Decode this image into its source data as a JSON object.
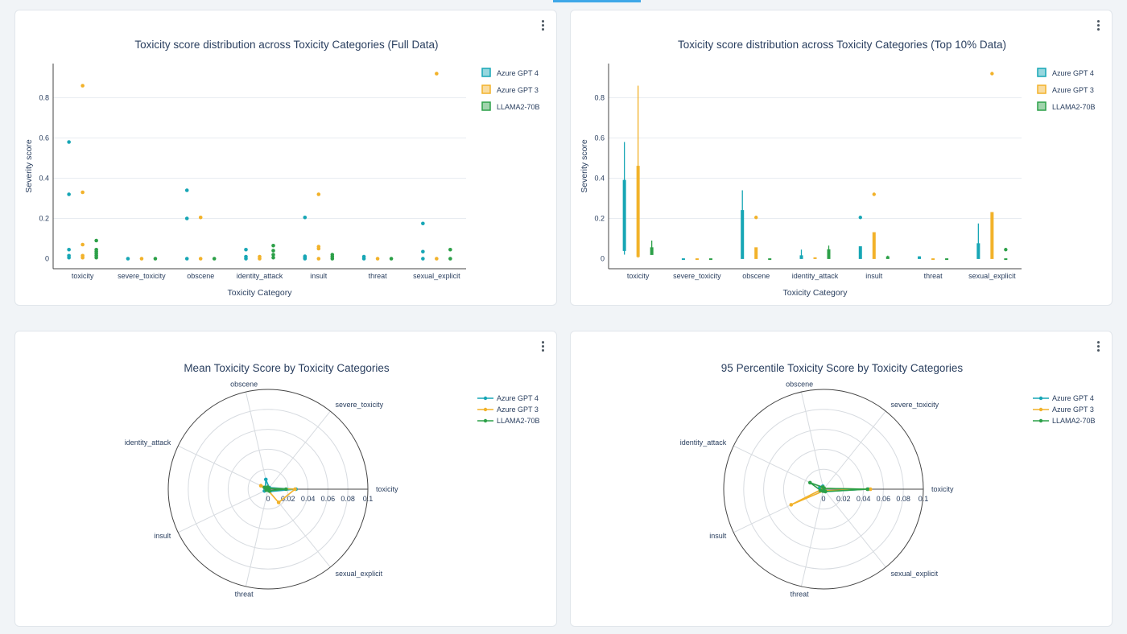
{
  "colors": {
    "azure_gpt4": "#17a6b5",
    "azure_gpt3": "#f2b22a",
    "llama2": "#2ca048"
  },
  "legend": [
    {
      "name": "Azure GPT 4",
      "color": "#17a6b5"
    },
    {
      "name": "Azure GPT 3",
      "color": "#f2b22a"
    },
    {
      "name": "LLAMA2-70B",
      "color": "#2ca048"
    }
  ],
  "chart_data": [
    {
      "type": "scatter",
      "title": "Toxicity score distribution across Toxicity Categories (Full Data)",
      "xlabel": "Toxicity Category",
      "ylabel": "Severity score",
      "categories": [
        "toxicity",
        "severe_toxicity",
        "obscene",
        "identity_attack",
        "insult",
        "threat",
        "sexual_explicit"
      ],
      "yticks": [
        "0",
        "0.2",
        "0.4",
        "0.6",
        "0.8"
      ],
      "ylim": [
        -0.05,
        0.97
      ],
      "grid": true,
      "legend_position": "top-right",
      "series": [
        {
          "name": "Azure GPT 4",
          "points": [
            [
              0,
              0.58
            ],
            [
              0,
              0.32
            ],
            [
              0,
              0.045
            ],
            [
              0,
              0.015
            ],
            [
              0,
              0.005
            ],
            [
              1,
              0.0
            ],
            [
              2,
              0.34
            ],
            [
              2,
              0.2
            ],
            [
              2,
              0.0
            ],
            [
              3,
              0.045
            ],
            [
              3,
              0.01
            ],
            [
              3,
              0.0
            ],
            [
              4,
              0.205
            ],
            [
              4,
              0.012
            ],
            [
              4,
              0.005
            ],
            [
              4,
              0.0
            ],
            [
              5,
              0.01
            ],
            [
              5,
              0.0
            ],
            [
              6,
              0.175
            ],
            [
              6,
              0.035
            ],
            [
              6,
              0.0
            ]
          ]
        },
        {
          "name": "Azure GPT 3",
          "points": [
            [
              0,
              0.86
            ],
            [
              0,
              0.33
            ],
            [
              0,
              0.07
            ],
            [
              0,
              0.015
            ],
            [
              0,
              0.005
            ],
            [
              1,
              0.0
            ],
            [
              2,
              0.205
            ],
            [
              2,
              0.0
            ],
            [
              3,
              0.01
            ],
            [
              3,
              0.0
            ],
            [
              4,
              0.32
            ],
            [
              4,
              0.06
            ],
            [
              4,
              0.05
            ],
            [
              4,
              0.0
            ],
            [
              5,
              0.0
            ],
            [
              6,
              0.92
            ],
            [
              6,
              0.0
            ]
          ]
        },
        {
          "name": "LLAMA2-70B",
          "points": [
            [
              0,
              0.09
            ],
            [
              0,
              0.045
            ],
            [
              0,
              0.035
            ],
            [
              0,
              0.025
            ],
            [
              0,
              0.015
            ],
            [
              0,
              0.005
            ],
            [
              1,
              0.0
            ],
            [
              2,
              0.0
            ],
            [
              3,
              0.065
            ],
            [
              3,
              0.04
            ],
            [
              3,
              0.02
            ],
            [
              3,
              0.005
            ],
            [
              4,
              0.02
            ],
            [
              4,
              0.01
            ],
            [
              4,
              0.0
            ],
            [
              5,
              0.0
            ],
            [
              6,
              0.045
            ],
            [
              6,
              0.0
            ]
          ]
        }
      ]
    },
    {
      "type": "box",
      "title": "Toxicity score distribution across Toxicity Categories (Top 10% Data)",
      "xlabel": "Toxicity Category",
      "ylabel": "Severity score",
      "categories": [
        "toxicity",
        "severe_toxicity",
        "obscene",
        "identity_attack",
        "insult",
        "threat",
        "sexual_explicit"
      ],
      "yticks": [
        "0",
        "0.2",
        "0.4",
        "0.6",
        "0.8"
      ],
      "ylim": [
        -0.05,
        0.97
      ],
      "grid": true,
      "legend_position": "top-right",
      "series": [
        {
          "name": "Azure GPT 4",
          "boxes": [
            {
              "min": 0.02,
              "q1": 0.04,
              "q3": 0.39,
              "max": 0.58,
              "outliers": []
            },
            {
              "min": 0.0,
              "q1": 0.0,
              "q3": 0.0,
              "max": 0.0,
              "outliers": []
            },
            {
              "min": 0.0,
              "q1": 0.0,
              "q3": 0.24,
              "max": 0.34,
              "outliers": []
            },
            {
              "min": 0.0,
              "q1": 0.0,
              "q3": 0.015,
              "max": 0.045,
              "outliers": []
            },
            {
              "min": 0.0,
              "q1": 0.0,
              "q3": 0.06,
              "max": 0.06,
              "outliers": [
                0.205
              ]
            },
            {
              "min": 0.0,
              "q1": 0.0,
              "q3": 0.01,
              "max": 0.012,
              "outliers": []
            },
            {
              "min": 0.0,
              "q1": 0.0,
              "q3": 0.075,
              "max": 0.175,
              "outliers": []
            }
          ]
        },
        {
          "name": "Azure GPT 3",
          "boxes": [
            {
              "min": 0.005,
              "q1": 0.01,
              "q3": 0.46,
              "max": 0.86,
              "outliers": []
            },
            {
              "min": 0.0,
              "q1": 0.0,
              "q3": 0.0,
              "max": 0.0,
              "outliers": []
            },
            {
              "min": 0.0,
              "q1": 0.0,
              "q3": 0.055,
              "max": 0.055,
              "outliers": [
                0.205
              ]
            },
            {
              "min": 0.0,
              "q1": 0.0,
              "q3": 0.005,
              "max": 0.005,
              "outliers": []
            },
            {
              "min": 0.0,
              "q1": 0.0,
              "q3": 0.13,
              "max": 0.13,
              "outliers": [
                0.32
              ]
            },
            {
              "min": 0.0,
              "q1": 0.0,
              "q3": 0.0,
              "max": 0.0,
              "outliers": []
            },
            {
              "min": 0.0,
              "q1": 0.0,
              "q3": 0.23,
              "max": 0.23,
              "outliers": [
                0.92
              ]
            }
          ]
        },
        {
          "name": "LLAMA2-70B",
          "boxes": [
            {
              "min": 0.02,
              "q1": 0.02,
              "q3": 0.055,
              "max": 0.09,
              "outliers": []
            },
            {
              "min": 0.0,
              "q1": 0.0,
              "q3": 0.0,
              "max": 0.0,
              "outliers": []
            },
            {
              "min": 0.0,
              "q1": 0.0,
              "q3": 0.0,
              "max": 0.0,
              "outliers": []
            },
            {
              "min": 0.0,
              "q1": 0.0,
              "q3": 0.045,
              "max": 0.065,
              "outliers": []
            },
            {
              "min": 0.0,
              "q1": 0.0,
              "q3": 0.01,
              "max": 0.015,
              "outliers": []
            },
            {
              "min": 0.0,
              "q1": 0.0,
              "q3": 0.0,
              "max": 0.0,
              "outliers": []
            },
            {
              "min": 0.0,
              "q1": 0.0,
              "q3": 0.0,
              "max": 0.0,
              "outliers": [
                0.045
              ]
            }
          ]
        }
      ]
    },
    {
      "type": "radar",
      "title": "Mean Toxicity Score by Toxicity Categories",
      "axes": [
        "toxicity",
        "severe_toxicity",
        "obscene",
        "identity_attack",
        "insult",
        "threat",
        "sexual_explicit"
      ],
      "rticks": [
        "0",
        "0.02",
        "0.04",
        "0.06",
        "0.08",
        "0.1"
      ],
      "rmax": 0.1,
      "legend_position": "top-right",
      "series": [
        {
          "name": "Azure GPT 4",
          "values": [
            0.028,
            0.002,
            0.01,
            0.003,
            0.004,
            0.001,
            0.003
          ]
        },
        {
          "name": "Azure GPT 3",
          "values": [
            0.027,
            0.001,
            0.002,
            0.008,
            0.002,
            0.001,
            0.017
          ]
        },
        {
          "name": "LLAMA2-70B",
          "values": [
            0.018,
            0.001,
            0.002,
            0.004,
            0.002,
            0.001,
            0.002
          ]
        }
      ]
    },
    {
      "type": "radar",
      "title": "95 Percentile Toxicity Score by Toxicity Categories",
      "axes": [
        "toxicity",
        "severe_toxicity",
        "obscene",
        "identity_attack",
        "insult",
        "threat",
        "sexual_explicit"
      ],
      "rticks": [
        "0",
        "0.02",
        "0.04",
        "0.06",
        "0.08",
        "0.1"
      ],
      "rmax": 0.1,
      "legend_position": "top-right",
      "series": [
        {
          "name": "Azure GPT 4",
          "values": [
            0.045,
            0.001,
            0.003,
            0.004,
            0.004,
            0.002,
            0.003
          ]
        },
        {
          "name": "Azure GPT 3",
          "values": [
            0.047,
            0.001,
            0.002,
            0.001,
            0.036,
            0.002,
            0.002
          ]
        },
        {
          "name": "LLAMA2-70B",
          "values": [
            0.044,
            0.001,
            0.002,
            0.015,
            0.003,
            0.002,
            0.003
          ]
        }
      ]
    }
  ]
}
